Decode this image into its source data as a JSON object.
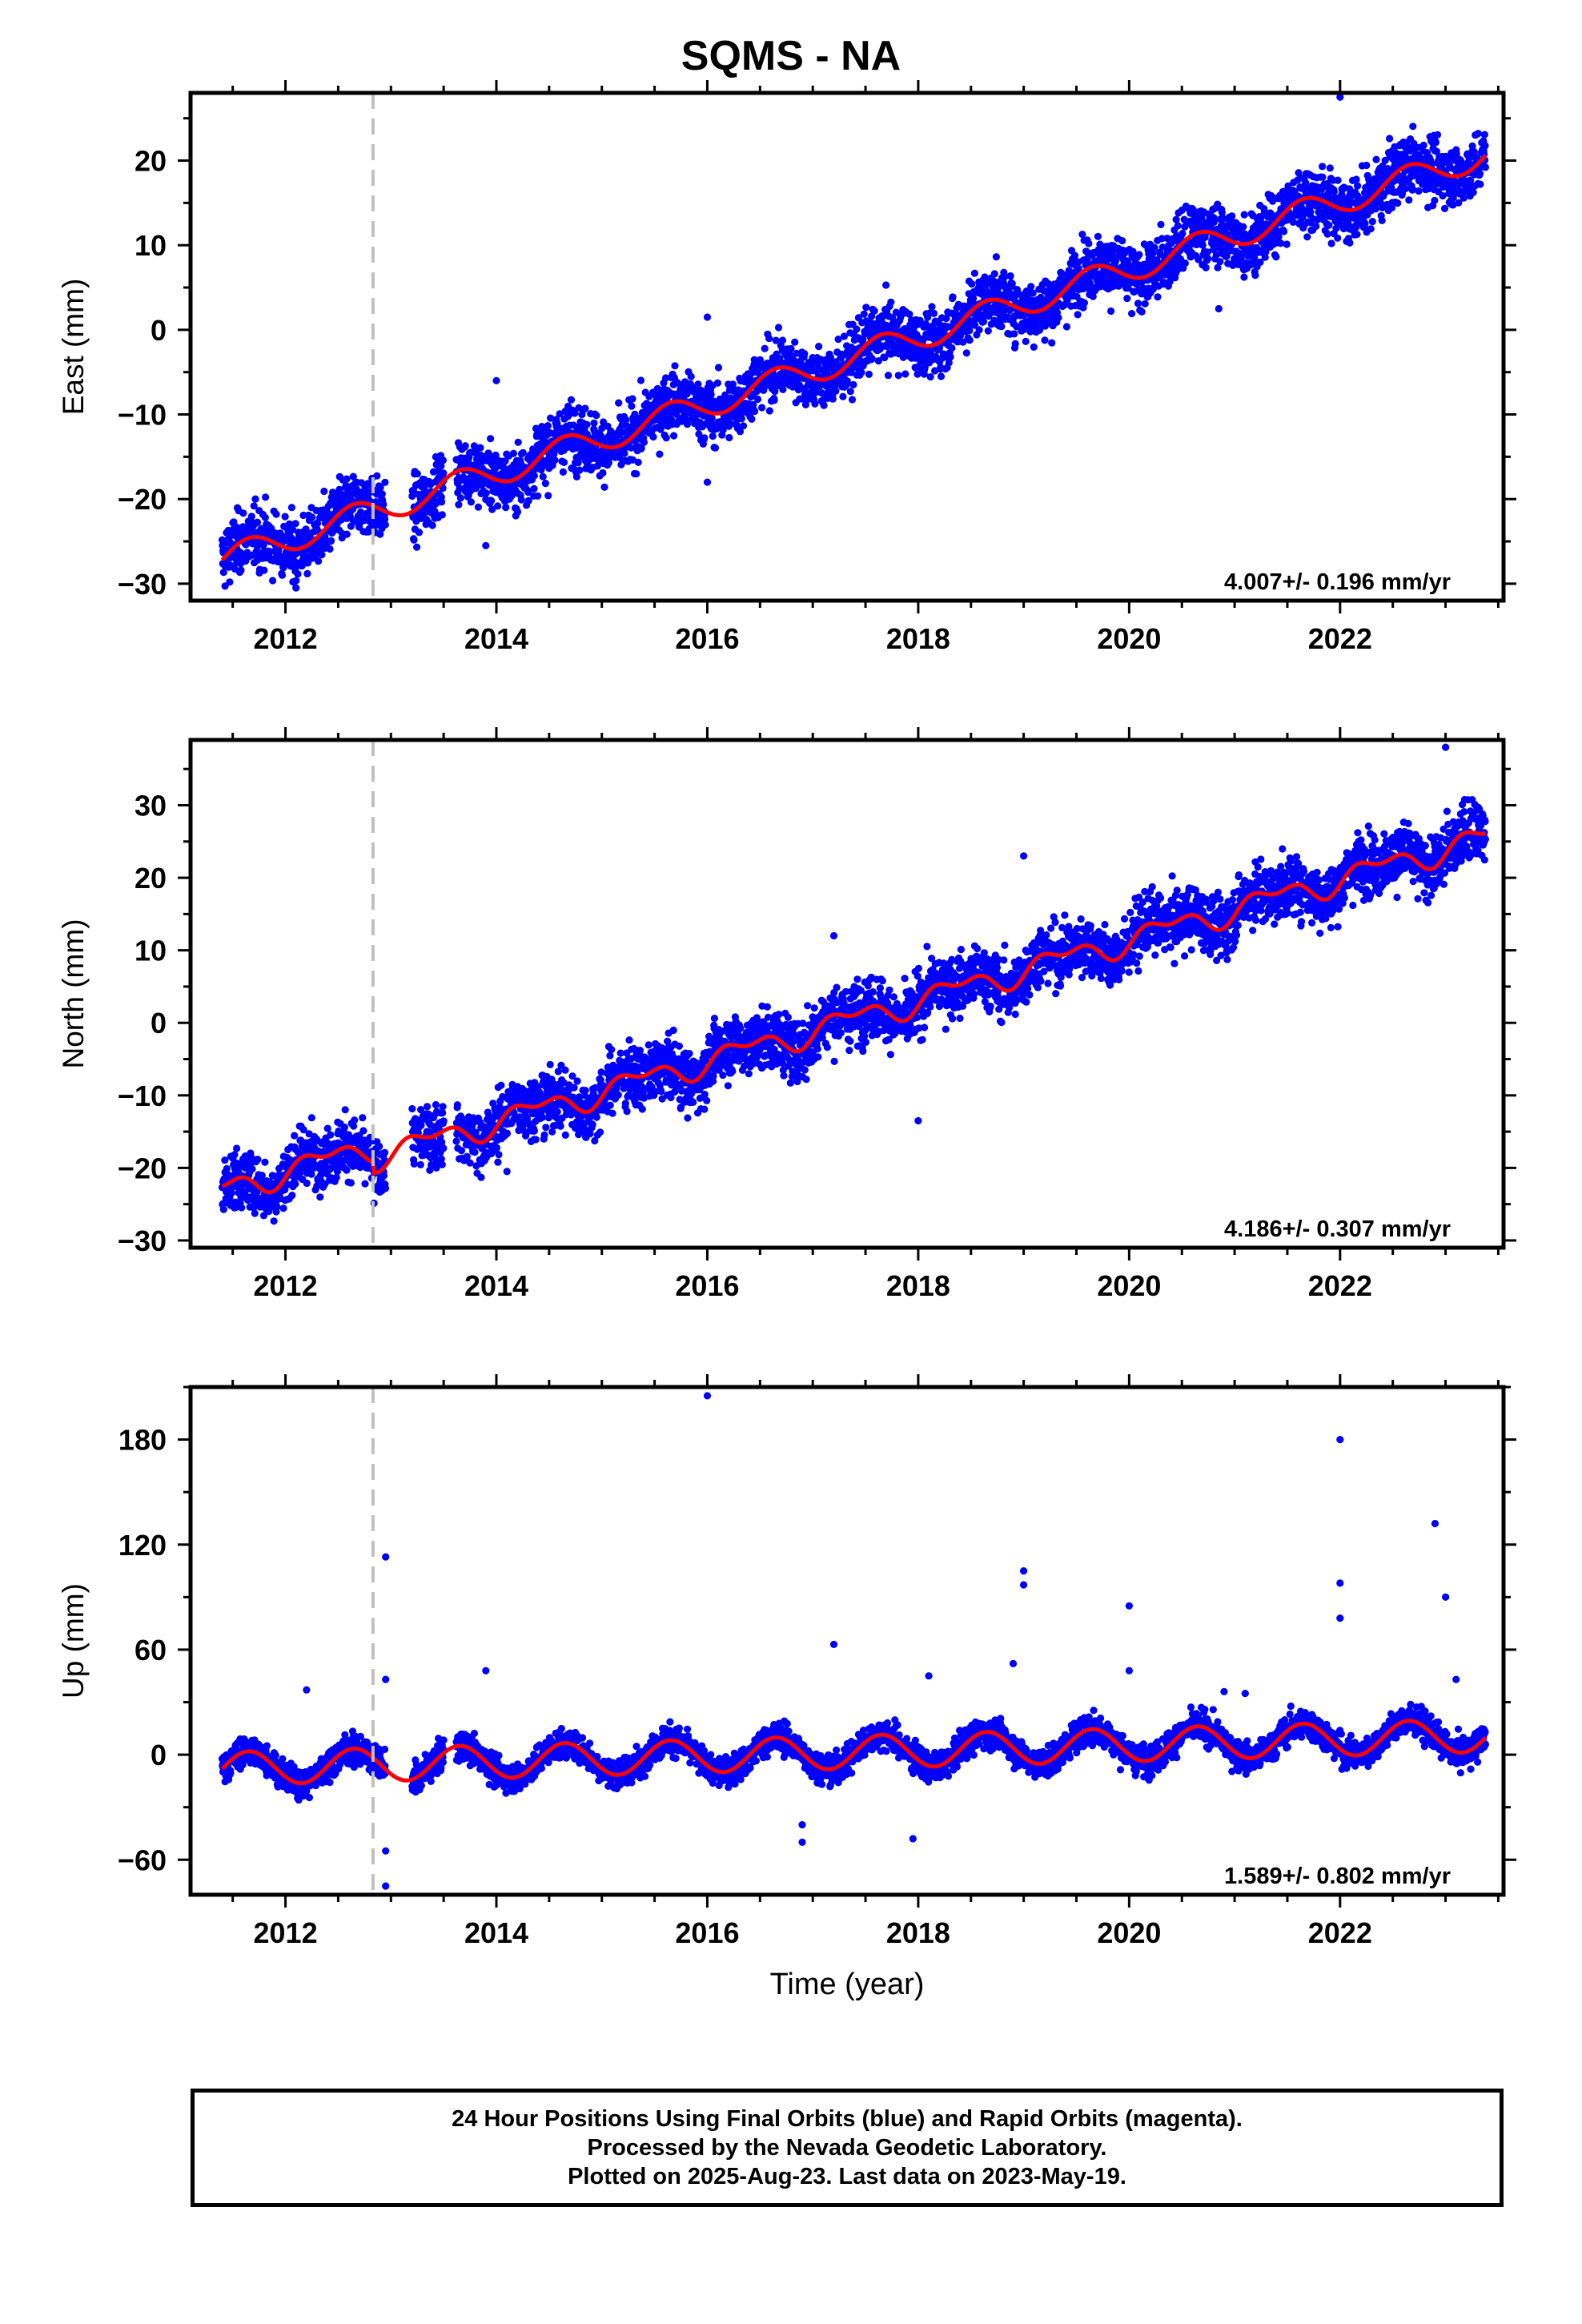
{
  "title": "SQMS - NA",
  "colors": {
    "data": "#0000ff",
    "model": "#ff0000",
    "offset_line": "#c0c0c0",
    "frame": "#000000"
  },
  "chart_data": [
    {
      "type": "scatter",
      "name": "east",
      "ylabel": "East (mm)",
      "xlabel": "",
      "xlim": [
        2011.1,
        2023.55
      ],
      "ylim": [
        -32,
        28
      ],
      "yticks": [
        -30,
        -20,
        -10,
        0,
        10,
        20
      ],
      "xticks": [
        2012,
        2014,
        2016,
        2018,
        2020,
        2022
      ],
      "rate_label": "4.007+/- 0.196 mm/yr",
      "offset_epoch": 2012.83,
      "grid": false,
      "model": {
        "start": 2011.4,
        "end": 2023.38,
        "start_value": -27.2,
        "rate": 4.007,
        "annual_amp": 1.6,
        "semiannual_amp": 0.0,
        "step": 0
      },
      "scatter": 2.8,
      "outliers": [
        [
          2016.0,
          1.5
        ],
        [
          2016.0,
          -18.0
        ],
        [
          2014.0,
          -6.0
        ],
        [
          2020.85,
          2.5
        ],
        [
          2022.0,
          27.5
        ],
        [
          2012.1,
          -30.5
        ],
        [
          2013.9,
          -25.5
        ]
      ]
    },
    {
      "type": "scatter",
      "name": "north",
      "ylabel": "North (mm)",
      "xlabel": "",
      "xlim": [
        2011.1,
        2023.55
      ],
      "ylim": [
        -31,
        39
      ],
      "yticks": [
        -30,
        -20,
        -10,
        0,
        10,
        20,
        30
      ],
      "xticks": [
        2012,
        2014,
        2016,
        2018,
        2020,
        2022
      ],
      "rate_label": "4.186+/- 0.307 mm/yr",
      "offset_epoch": 2012.83,
      "grid": false,
      "model": {
        "start": 2011.4,
        "end": 2023.38,
        "start_value": -23.0,
        "rate": 4.186,
        "annual_amp": 0.0,
        "semiannual_amp": 0.0,
        "step": -1.5
      },
      "staircase": true,
      "scatter": 3.2,
      "outliers": [
        [
          2019.0,
          23.0
        ],
        [
          2023.0,
          38.0
        ],
        [
          2017.2,
          12.0
        ],
        [
          2018.0,
          -13.5
        ],
        [
          2014.1,
          -20.5
        ]
      ]
    },
    {
      "type": "scatter",
      "name": "up",
      "ylabel": "Up (mm)",
      "xlabel": "Time (year)",
      "xlim": [
        2011.1,
        2023.55
      ],
      "ylim": [
        -80,
        210
      ],
      "yticks": [
        -60,
        0,
        60,
        120,
        180
      ],
      "xticks": [
        2012,
        2014,
        2016,
        2018,
        2020,
        2022
      ],
      "rate_label": "1.589+/- 0.802 mm/yr",
      "offset_epoch": 2012.83,
      "grid": false,
      "model": {
        "start": 2011.4,
        "end": 2023.38,
        "start_value": -8.0,
        "rate": 1.589,
        "annual_amp": 9.5,
        "semiannual_amp": 0.0,
        "step": 0
      },
      "scatter": 6.5,
      "outliers": [
        [
          2016.0,
          205.0
        ],
        [
          2022.0,
          180.0
        ],
        [
          2022.9,
          132.0
        ],
        [
          2012.95,
          113.0
        ],
        [
          2019.0,
          105.0
        ],
        [
          2019.0,
          97.0
        ],
        [
          2022.0,
          98.0
        ],
        [
          2023.0,
          90.0
        ],
        [
          2020.0,
          85.0
        ],
        [
          2022.0,
          78.0
        ],
        [
          2012.95,
          43.0
        ],
        [
          2013.9,
          48.0
        ],
        [
          2017.2,
          63.0
        ],
        [
          2018.1,
          45.0
        ],
        [
          2018.9,
          52.0
        ],
        [
          2020.0,
          48.0
        ],
        [
          2012.95,
          -55.0
        ],
        [
          2012.95,
          -75.0
        ],
        [
          2016.9,
          -40.0
        ],
        [
          2016.9,
          -50.0
        ],
        [
          2017.95,
          -48.0
        ],
        [
          2012.2,
          37.0
        ],
        [
          2020.9,
          36.0
        ],
        [
          2021.1,
          35.0
        ],
        [
          2023.1,
          43.0
        ]
      ]
    }
  ],
  "footer": {
    "line1": "24 Hour Positions Using Final Orbits (blue) and Rapid Orbits (magenta).",
    "line2": "Processed by the Nevada Geodetic Laboratory.",
    "line3": "Plotted on 2025-Aug-23. Last data on 2023-May-19."
  }
}
